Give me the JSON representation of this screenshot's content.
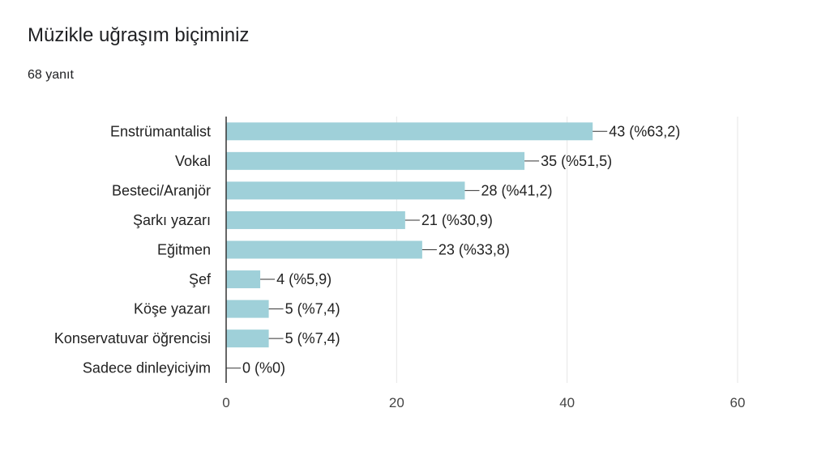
{
  "header": {
    "title": "Müzikle uğraşım biçiminiz",
    "responses": "68 yanıt"
  },
  "colors": {
    "bar": "#9fd0d9",
    "grid": "#e6e6e6",
    "axis": "#333333",
    "leader": "#333333"
  },
  "chart_data": {
    "type": "bar",
    "orientation": "horizontal",
    "categories": [
      "Enstrümantalist",
      "Vokal",
      "Besteci/Aranjör",
      "Şarkı yazarı",
      "Eğitmen",
      "Şef",
      "Köşe yazarı",
      "Konservatuvar öğrencisi",
      "Sadece dinleyiciyim"
    ],
    "values": [
      43,
      35,
      28,
      21,
      23,
      4,
      5,
      5,
      0
    ],
    "data_labels": [
      "43 (%63,2)",
      "35 (%51,5)",
      "28 (%41,2)",
      "21 (%30,9)",
      "23 (%33,8)",
      "4 (%5,9)",
      "5 (%7,4)",
      "5 (%7,4)",
      "0 (%0)"
    ],
    "xlim": [
      0,
      60
    ],
    "xticks": [
      0,
      20,
      40,
      60
    ],
    "grid": true,
    "title": "Müzikle uğraşım biçiminiz",
    "xlabel": "",
    "ylabel": ""
  }
}
